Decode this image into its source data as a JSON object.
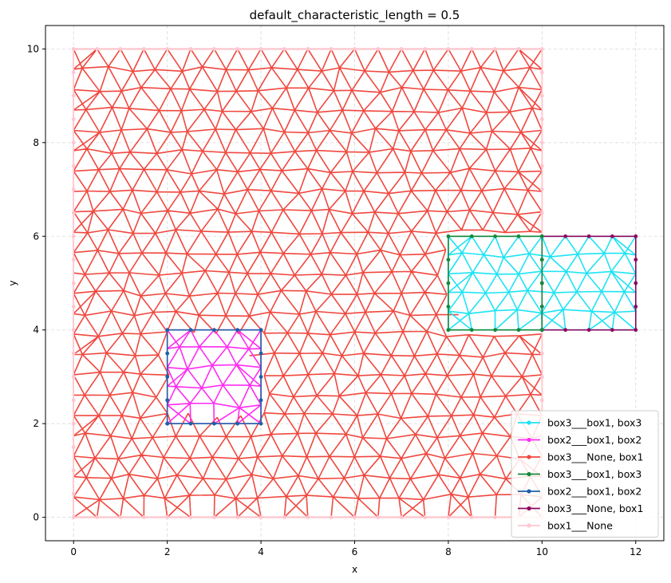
{
  "chart_data": {
    "type": "line",
    "title": "default_characteristic_length = 0.5",
    "xlabel": "x",
    "ylabel": "y",
    "xlim": [
      -0.6,
      12.6
    ],
    "ylim": [
      -0.5,
      10.5
    ],
    "xticks": [
      0,
      2,
      4,
      6,
      8,
      10,
      12
    ],
    "yticks": [
      0,
      2,
      4,
      6,
      8,
      10
    ],
    "grid": true,
    "legend_position": "lower-right",
    "series": [
      {
        "name": "box3___box1, box3",
        "color": "#1ee3f5",
        "kind": "mesh",
        "region": [
          8,
          4,
          12,
          6
        ]
      },
      {
        "name": "box2___box1, box2",
        "color": "#ff2cf2",
        "kind": "mesh",
        "region": [
          2,
          2,
          4,
          4
        ]
      },
      {
        "name": "box3___None, box1",
        "color": "#f0483f",
        "kind": "mesh",
        "region": [
          0,
          0,
          10,
          10
        ]
      },
      {
        "name": "box3___box1, box3",
        "color": "#138a3c",
        "kind": "boundary",
        "points": [
          [
            8,
            4
          ],
          [
            8.5,
            4
          ],
          [
            9,
            4
          ],
          [
            9.5,
            4
          ],
          [
            10,
            4
          ],
          [
            10,
            4.5
          ],
          [
            10,
            5
          ],
          [
            10,
            5.5
          ],
          [
            10,
            6
          ],
          [
            9.5,
            6
          ],
          [
            9,
            6
          ],
          [
            8.5,
            6
          ],
          [
            8,
            6
          ],
          [
            8,
            5.5
          ],
          [
            8,
            5
          ],
          [
            8,
            4.5
          ],
          [
            8,
            4
          ]
        ]
      },
      {
        "name": "box2___box1, box2",
        "color": "#1f5fa8",
        "kind": "boundary",
        "points": [
          [
            2,
            2
          ],
          [
            2.5,
            2
          ],
          [
            3,
            2
          ],
          [
            3.5,
            2
          ],
          [
            4,
            2
          ],
          [
            4,
            2.5
          ],
          [
            4,
            3
          ],
          [
            4,
            3.5
          ],
          [
            4,
            4
          ],
          [
            3.5,
            4
          ],
          [
            3,
            4
          ],
          [
            2.5,
            4
          ],
          [
            2,
            4
          ],
          [
            2,
            3.5
          ],
          [
            2,
            3
          ],
          [
            2,
            2.5
          ],
          [
            2,
            2
          ]
        ]
      },
      {
        "name": "box3___None, box1",
        "color": "#8b0a60",
        "kind": "boundary",
        "points": [
          [
            10,
            4
          ],
          [
            10.5,
            4
          ],
          [
            11,
            4
          ],
          [
            11.5,
            4
          ],
          [
            12,
            4
          ],
          [
            12,
            4.5
          ],
          [
            12,
            5
          ],
          [
            12,
            5.5
          ],
          [
            12,
            6
          ],
          [
            11.5,
            6
          ],
          [
            11,
            6
          ],
          [
            10.5,
            6
          ],
          [
            10,
            6
          ],
          [
            10,
            5.5
          ],
          [
            10,
            5
          ],
          [
            10,
            4.5
          ],
          [
            10,
            4
          ]
        ]
      },
      {
        "name": "box1___None",
        "color": "#ffc6d0",
        "kind": "boundary",
        "step": 0.5,
        "points": [
          [
            0,
            0
          ],
          [
            10,
            0
          ],
          [
            10,
            10
          ],
          [
            0,
            10
          ],
          [
            0,
            0
          ]
        ]
      }
    ]
  }
}
